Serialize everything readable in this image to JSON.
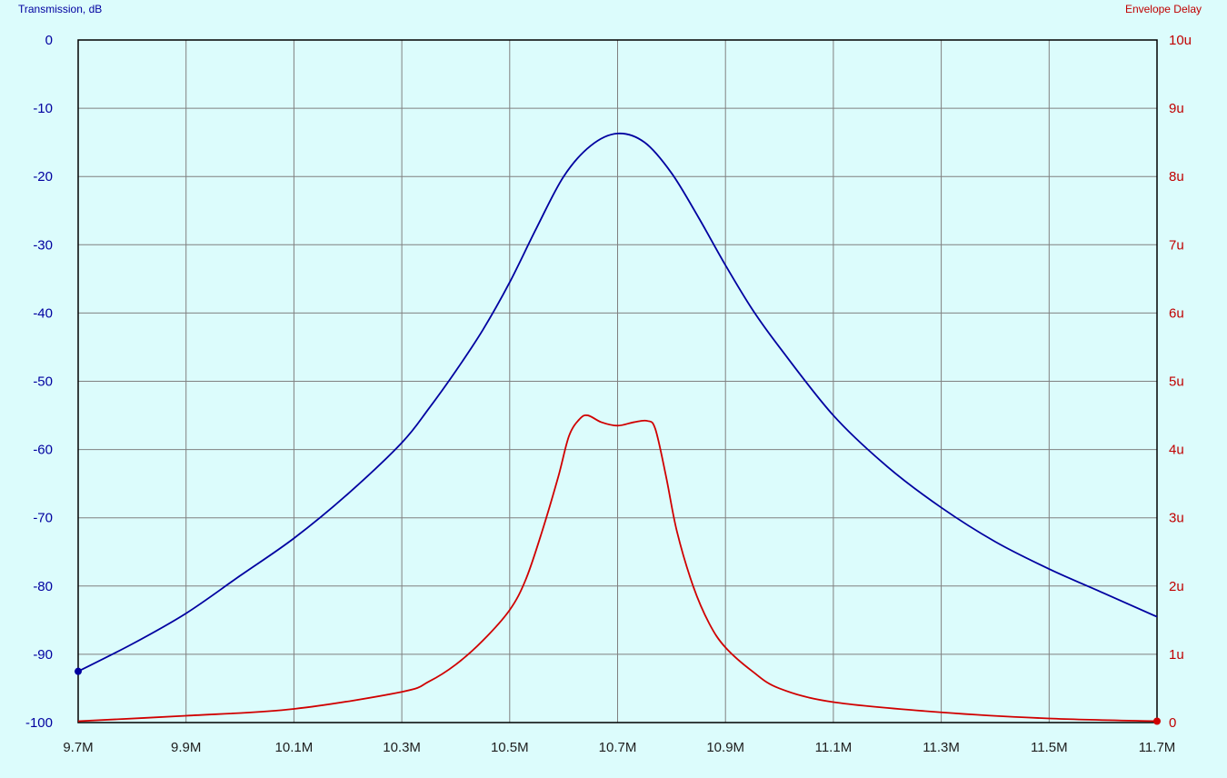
{
  "chart_data": {
    "type": "line",
    "left_axis_title": "Transmission, dB",
    "right_axis_title": "Envelope Delay",
    "x_unit_suffix": "M",
    "x_ticks": [
      9.7,
      9.9,
      10.1,
      10.3,
      10.5,
      10.7,
      10.9,
      11.1,
      11.3,
      11.5,
      11.7
    ],
    "x_tick_labels": [
      "9.7M",
      "9.9M",
      "10.1M",
      "10.3M",
      "10.5M",
      "10.7M",
      "10.9M",
      "11.1M",
      "11.3M",
      "11.5M",
      "11.7M"
    ],
    "xlim": [
      9.7,
      11.7
    ],
    "left_ylim": [
      -100,
      0
    ],
    "left_y_ticks": [
      0,
      -10,
      -20,
      -30,
      -40,
      -50,
      -60,
      -70,
      -80,
      -90,
      -100
    ],
    "left_y_tick_labels": [
      "0",
      "-10",
      "-20",
      "-30",
      "-40",
      "-50",
      "-60",
      "-70",
      "-80",
      "-90",
      "-100"
    ],
    "right_ylim": [
      0,
      10
    ],
    "right_y_ticks": [
      10,
      9,
      8,
      7,
      6,
      5,
      4,
      3,
      2,
      1,
      0
    ],
    "right_y_tick_labels": [
      "10u",
      "9u",
      "8u",
      "7u",
      "6u",
      "5u",
      "4u",
      "3u",
      "2u",
      "1u",
      "0"
    ],
    "grid": true,
    "series": [
      {
        "axis": "left",
        "color": "#0000a0",
        "x": [
          9.7,
          9.8,
          9.9,
          10.0,
          10.1,
          10.2,
          10.3,
          10.35,
          10.4,
          10.45,
          10.5,
          10.55,
          10.6,
          10.65,
          10.7,
          10.75,
          10.8,
          10.85,
          10.9,
          10.95,
          11.0,
          11.1,
          11.2,
          11.3,
          11.4,
          11.5,
          11.6,
          11.7
        ],
        "y": [
          -92.5,
          -88.5,
          -84,
          -78.5,
          -73,
          -66.5,
          -59,
          -54,
          -48.5,
          -42.5,
          -35.5,
          -27.5,
          -20,
          -15.5,
          -13.7,
          -15,
          -19.5,
          -26,
          -33,
          -39.5,
          -45,
          -55,
          -62.5,
          -68.5,
          -73.5,
          -77.5,
          -81,
          -84.5
        ]
      },
      {
        "axis": "right",
        "color": "#d00000",
        "x": [
          9.7,
          9.9,
          10.1,
          10.3,
          10.35,
          10.4,
          10.45,
          10.5,
          10.53,
          10.56,
          10.59,
          10.61,
          10.63,
          10.645,
          10.67,
          10.7,
          10.73,
          10.755,
          10.77,
          10.79,
          10.81,
          10.84,
          10.87,
          10.9,
          10.95,
          11.0,
          11.1,
          11.3,
          11.5,
          11.7
        ],
        "y": [
          0.02,
          0.1,
          0.2,
          0.45,
          0.6,
          0.85,
          1.2,
          1.65,
          2.1,
          2.8,
          3.6,
          4.2,
          4.45,
          4.5,
          4.4,
          4.35,
          4.4,
          4.42,
          4.3,
          3.6,
          2.8,
          2.0,
          1.45,
          1.1,
          0.75,
          0.5,
          0.3,
          0.15,
          0.06,
          0.02
        ]
      }
    ]
  }
}
